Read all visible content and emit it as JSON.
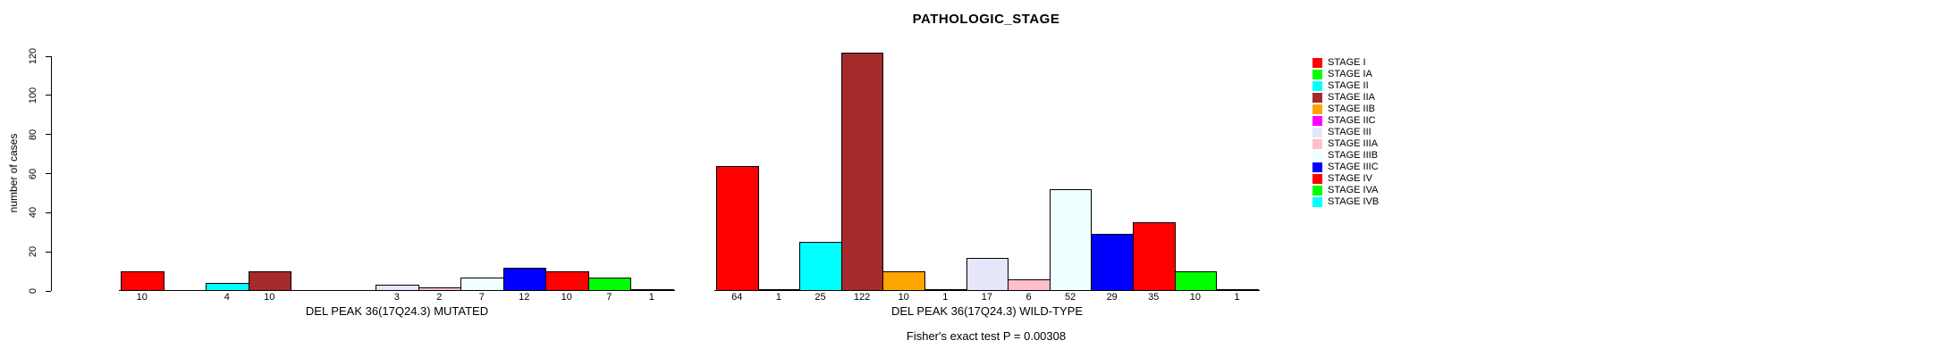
{
  "title": "PATHOLOGIC_STAGE",
  "y_axis": {
    "label": "number of cases",
    "ticks": [
      0,
      20,
      40,
      60,
      80,
      100,
      120
    ]
  },
  "annotation": "Fisher's exact test P = 0.00308",
  "legend": [
    {
      "label": "STAGE I",
      "color": "#FF0000"
    },
    {
      "label": "STAGE IA",
      "color": "#00FF00"
    },
    {
      "label": "STAGE II",
      "color": "#00FFFF"
    },
    {
      "label": "STAGE IIA",
      "color": "#A52A2A"
    },
    {
      "label": "STAGE IIB",
      "color": "#FFA500"
    },
    {
      "label": "STAGE IIC",
      "color": "#FF00FF"
    },
    {
      "label": "STAGE III",
      "color": "#E6E6FA"
    },
    {
      "label": "STAGE IIIA",
      "color": "#FFC0CB"
    },
    {
      "label": "STAGE IIIB",
      "color": "#F0FFFF"
    },
    {
      "label": "STAGE IIIC",
      "color": "#0000FF"
    },
    {
      "label": "STAGE IV",
      "color": "#FF0000"
    },
    {
      "label": "STAGE IVA",
      "color": "#00FF00"
    },
    {
      "label": "STAGE IVB",
      "color": "#00FFFF"
    }
  ],
  "chart_data": {
    "type": "bar",
    "title": "PATHOLOGIC_STAGE",
    "xlabel": "",
    "ylabel": "number of cases",
    "ylim": [
      0,
      120
    ],
    "grid": false,
    "legend_position": "right",
    "categories": [
      "STAGE I",
      "STAGE IA",
      "STAGE II",
      "STAGE IIA",
      "STAGE IIB",
      "STAGE IIC",
      "STAGE III",
      "STAGE IIIA",
      "STAGE IIIB",
      "STAGE IIIC",
      "STAGE IV",
      "STAGE IVA",
      "STAGE IVB"
    ],
    "bar_colors": [
      "#FF0000",
      "#00FF00",
      "#00FFFF",
      "#A52A2A",
      "#FFA500",
      "#FF00FF",
      "#E6E6FA",
      "#FFC0CB",
      "#F0FFFF",
      "#0000FF",
      "#FF0000",
      "#00FF00",
      "#00FFFF"
    ],
    "series": [
      {
        "name": "DEL PEAK 36(17Q24.3) MUTATED",
        "values": [
          10,
          0,
          4,
          10,
          0,
          0,
          3,
          2,
          7,
          12,
          10,
          7,
          1
        ]
      },
      {
        "name": "DEL PEAK 36(17Q24.3) WILD-TYPE",
        "values": [
          64,
          1,
          25,
          122,
          10,
          1,
          17,
          6,
          52,
          29,
          35,
          10,
          1
        ]
      }
    ],
    "bar_label_rule": "value shown under each bar; zero-count bars have no bar and no label",
    "annotation": "Fisher's exact test P = 0.00308"
  }
}
